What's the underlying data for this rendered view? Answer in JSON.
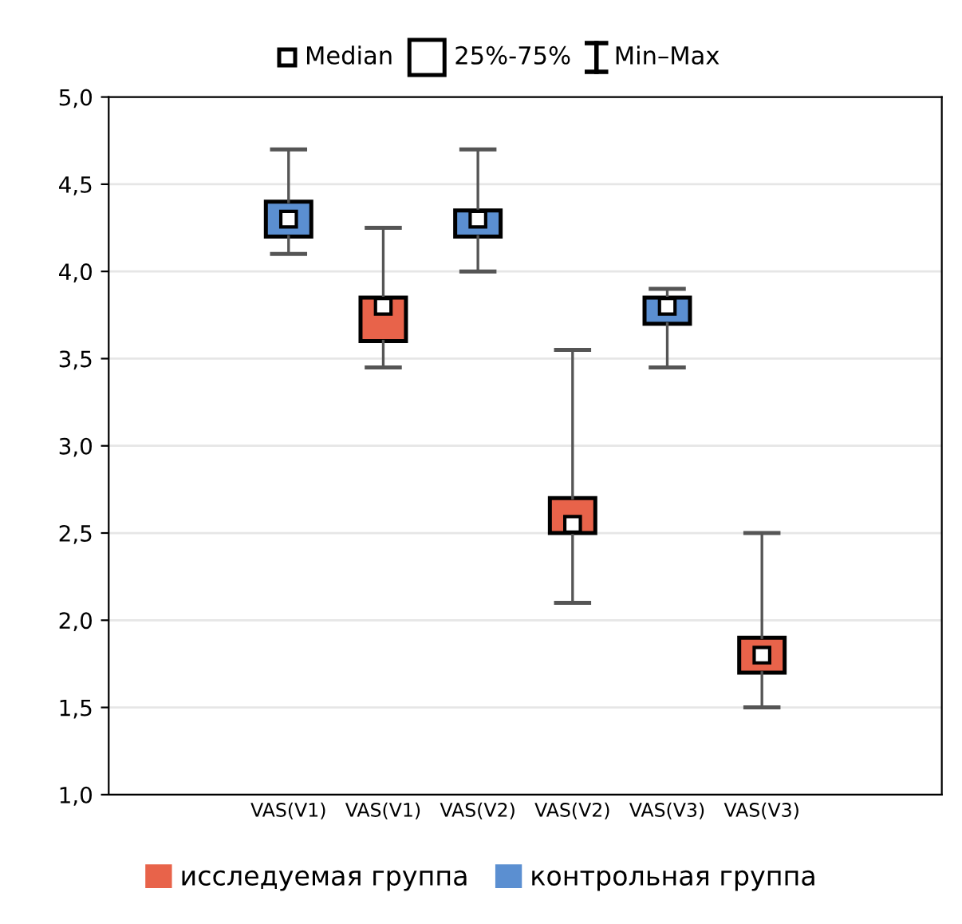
{
  "chart_data": {
    "type": "box",
    "categories": [
      null,
      "VAS(V1)",
      "VAS(V1)",
      "VAS(V2)",
      "VAS(V2)",
      "VAS(V3)",
      "VAS(V3)",
      null
    ],
    "series": [
      {
        "name": "исследуемая группа",
        "color": "#e8634a",
        "boxes": [
          null,
          null,
          {
            "low": 3.45,
            "q1": 3.6,
            "median": 3.8,
            "q3": 3.85,
            "high": 4.25
          },
          null,
          {
            "low": 2.1,
            "q1": 2.5,
            "median": 2.55,
            "q3": 2.7,
            "high": 3.55
          },
          null,
          {
            "low": 1.5,
            "q1": 1.7,
            "median": 1.8,
            "q3": 1.9,
            "high": 2.5
          },
          null
        ]
      },
      {
        "name": "контрольная группа",
        "color": "#5b8fd1",
        "boxes": [
          null,
          {
            "low": 4.1,
            "q1": 4.2,
            "median": 4.3,
            "q3": 4.4,
            "high": 4.7
          },
          null,
          {
            "low": 4.0,
            "q1": 4.2,
            "median": 4.3,
            "q3": 4.35,
            "high": 4.7
          },
          null,
          {
            "low": 3.45,
            "q1": 3.7,
            "median": 3.8,
            "q3": 3.85,
            "high": 3.9
          },
          null,
          null
        ]
      }
    ],
    "annotations": [
      "Median",
      "25%-75%",
      "Min–Max"
    ],
    "ylim": [
      1.0,
      5.0
    ],
    "yticks": [
      {
        "value": 1.0,
        "label": "1,0"
      },
      {
        "value": 1.5,
        "label": "1,5"
      },
      {
        "value": 2.0,
        "label": "2,0"
      },
      {
        "value": 2.5,
        "label": "2,5"
      },
      {
        "value": 3.0,
        "label": "3,0"
      },
      {
        "value": 3.5,
        "label": "3,5"
      },
      {
        "value": 4.0,
        "label": "4,0"
      },
      {
        "value": 4.5,
        "label": "4,5"
      },
      {
        "value": 5.0,
        "label": "5,0"
      }
    ],
    "grid": "y",
    "legend": "bottom"
  }
}
